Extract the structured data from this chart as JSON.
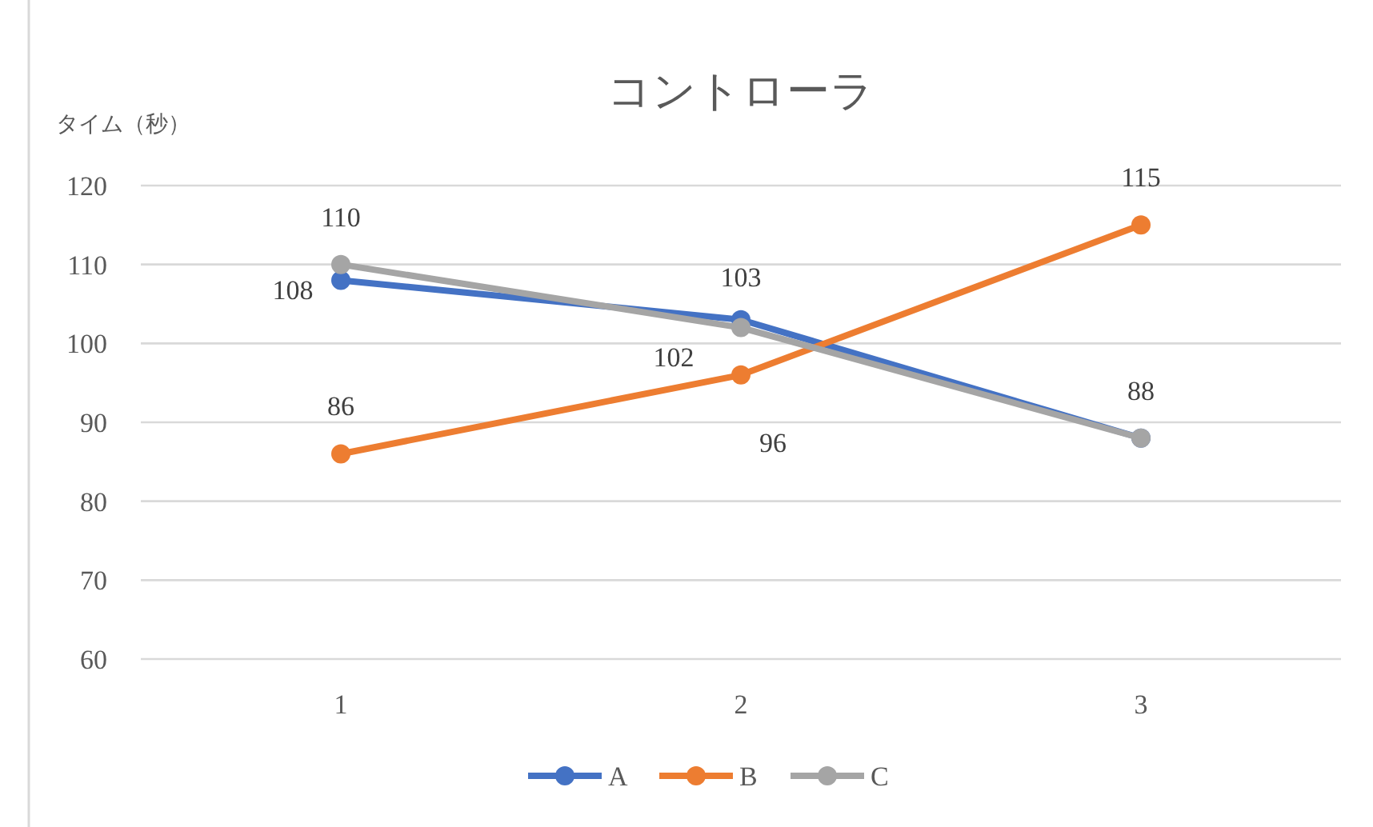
{
  "chart_data": {
    "type": "line",
    "title": "コントローラ",
    "ylabel": "タイム（秒）",
    "categories": [
      "1",
      "2",
      "3"
    ],
    "series": [
      {
        "name": "A",
        "color": "#4472c4",
        "values": [
          108,
          103,
          88
        ],
        "value_labels": [
          "108",
          "103",
          "88"
        ]
      },
      {
        "name": "B",
        "color": "#ed7d31",
        "values": [
          86,
          96,
          115
        ],
        "value_labels": [
          "86",
          "96",
          "115"
        ]
      },
      {
        "name": "C",
        "color": "#a5a5a5",
        "values": [
          110,
          102,
          88
        ],
        "value_labels": [
          "110",
          "102",
          null
        ]
      }
    ],
    "ylim": [
      60,
      120
    ],
    "yticks": [
      60,
      70,
      80,
      90,
      100,
      110,
      120
    ],
    "grid": "y",
    "legend": "bottom",
    "marker": "circle"
  }
}
